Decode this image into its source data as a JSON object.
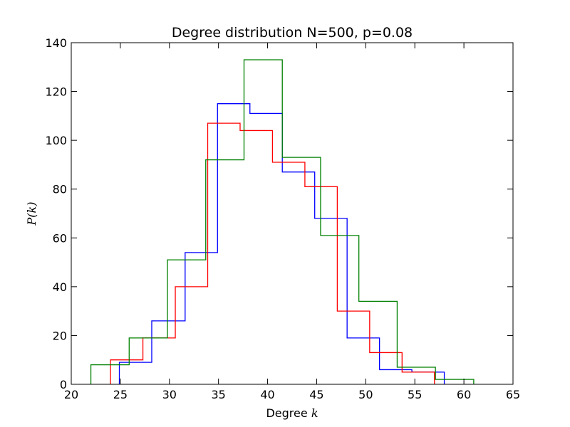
{
  "chart_data": {
    "type": "histogram-step",
    "title": "Degree distribution N=500, p=0.08",
    "xlabel_text": "Degree ",
    "xlabel_math": "k",
    "ylabel_math": "P(k)",
    "xlim": [
      20,
      65
    ],
    "ylim": [
      0,
      140
    ],
    "xticks": [
      20,
      25,
      30,
      35,
      40,
      45,
      50,
      55,
      60,
      65
    ],
    "yticks": [
      0,
      20,
      40,
      60,
      80,
      100,
      120,
      140
    ],
    "grid": false,
    "series": [
      {
        "color": "#0000ff",
        "edges": [
          24.9,
          28.2,
          31.6,
          34.9,
          38.2,
          41.5,
          44.8,
          48.1,
          51.4,
          54.7,
          58.0
        ],
        "counts": [
          9,
          26,
          54,
          115,
          111,
          87,
          68,
          19,
          6,
          5
        ]
      },
      {
        "color": "#ff0000",
        "edges": [
          24.0,
          27.3,
          30.6,
          33.9,
          37.2,
          40.5,
          43.8,
          47.1,
          50.4,
          53.7,
          57.0
        ],
        "counts": [
          10,
          19,
          40,
          107,
          104,
          91,
          81,
          30,
          13,
          5
        ]
      },
      {
        "color": "#008000",
        "edges": [
          22.0,
          25.9,
          29.8,
          33.7,
          37.6,
          41.5,
          45.4,
          49.3,
          53.2,
          57.1,
          61.0
        ],
        "counts": [
          8,
          19,
          51,
          92,
          133,
          93,
          61,
          34,
          7,
          2
        ]
      }
    ]
  }
}
